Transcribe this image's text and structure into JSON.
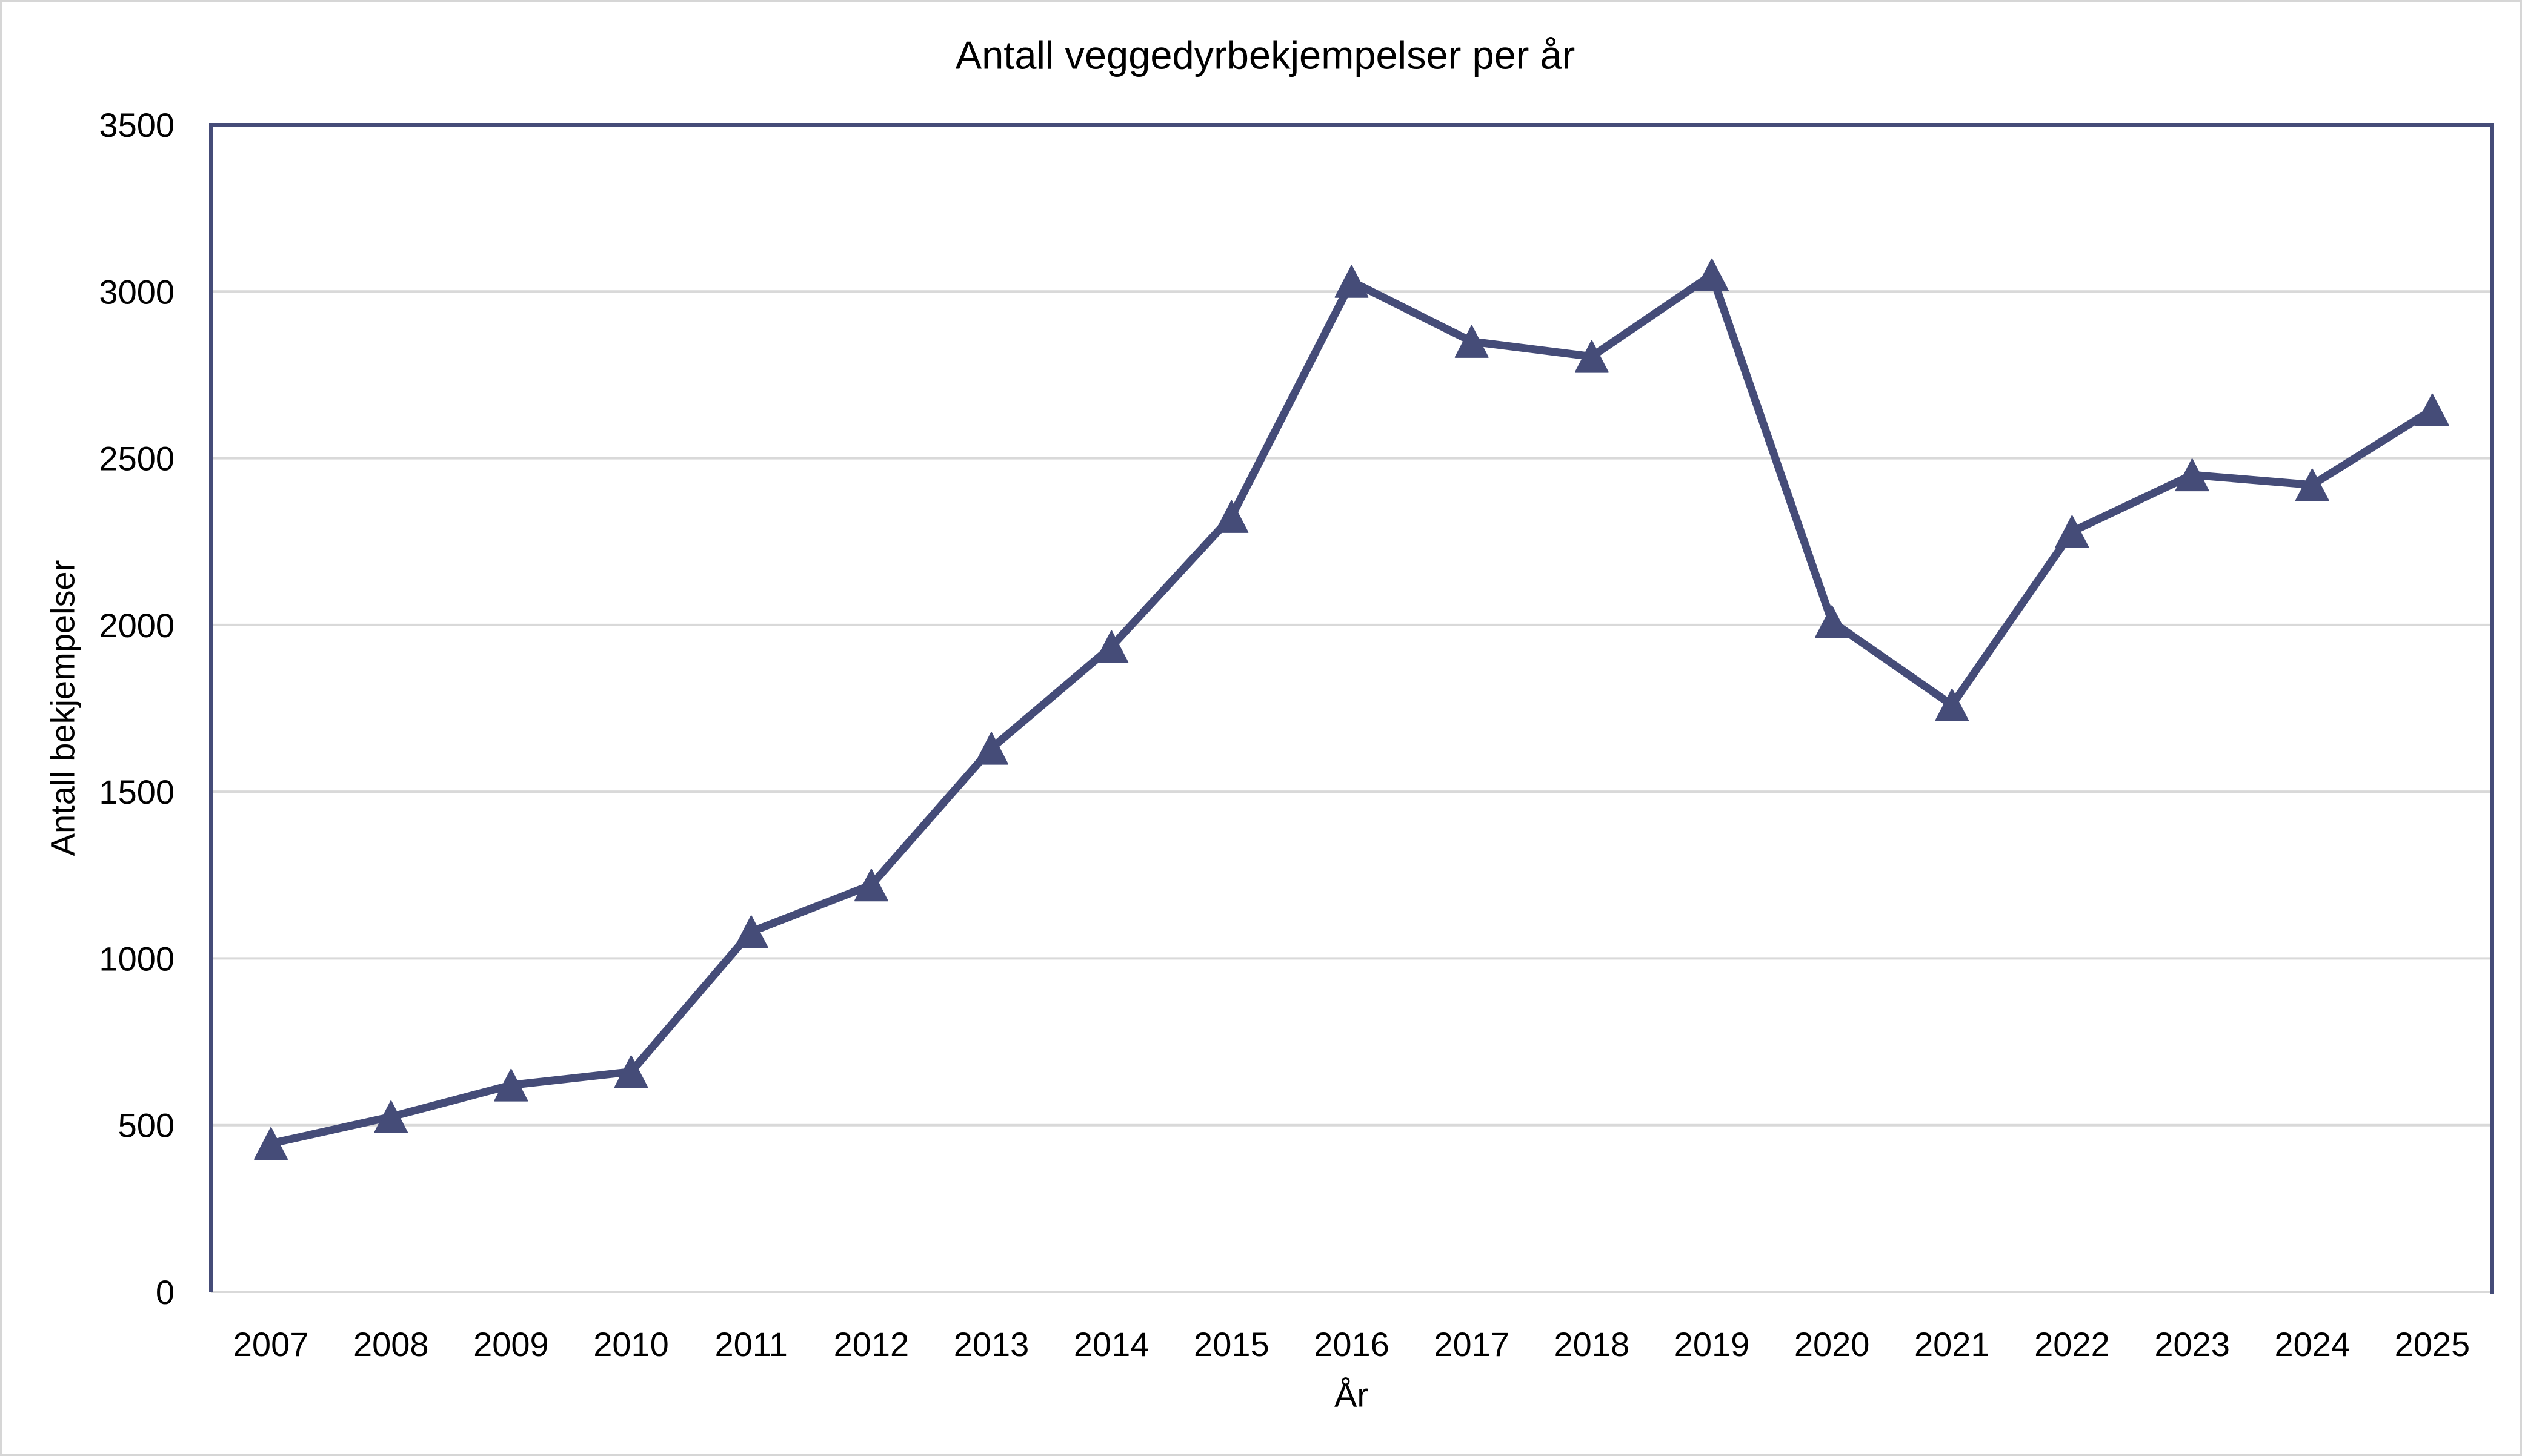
{
  "page": {
    "background": "#FFFFFF",
    "border_color": "#D6D6D6"
  },
  "chart_data": {
    "type": "line",
    "title": "Antall veggedyrbekjempelser per år",
    "xlabel": "År",
    "ylabel": "Antall bekjempelser",
    "categories": [
      "2007",
      "2008",
      "2009",
      "2010",
      "2011",
      "2012",
      "2013",
      "2014",
      "2015",
      "2016",
      "2017",
      "2018",
      "2019",
      "2020",
      "2021",
      "2022",
      "2023",
      "2024",
      "2025"
    ],
    "series": [
      {
        "name": "Antall bekjempelser",
        "values": [
          445,
          525,
          620,
          660,
          1080,
          1220,
          1630,
          1935,
          2325,
          3030,
          2850,
          2805,
          3050,
          2010,
          1760,
          2280,
          2450,
          2420,
          2645
        ]
      }
    ],
    "ylim": [
      0,
      3500
    ],
    "yticks": [
      0,
      500,
      1000,
      1500,
      2000,
      2500,
      3000,
      3500
    ],
    "grid": true,
    "legend_position": "none",
    "marker": "triangle",
    "colors": {
      "series": "#454C78",
      "axis_border": "#454C78",
      "gridline": "#D9D9D9",
      "baseline": "#D9D9D9",
      "text": "#000000"
    }
  }
}
